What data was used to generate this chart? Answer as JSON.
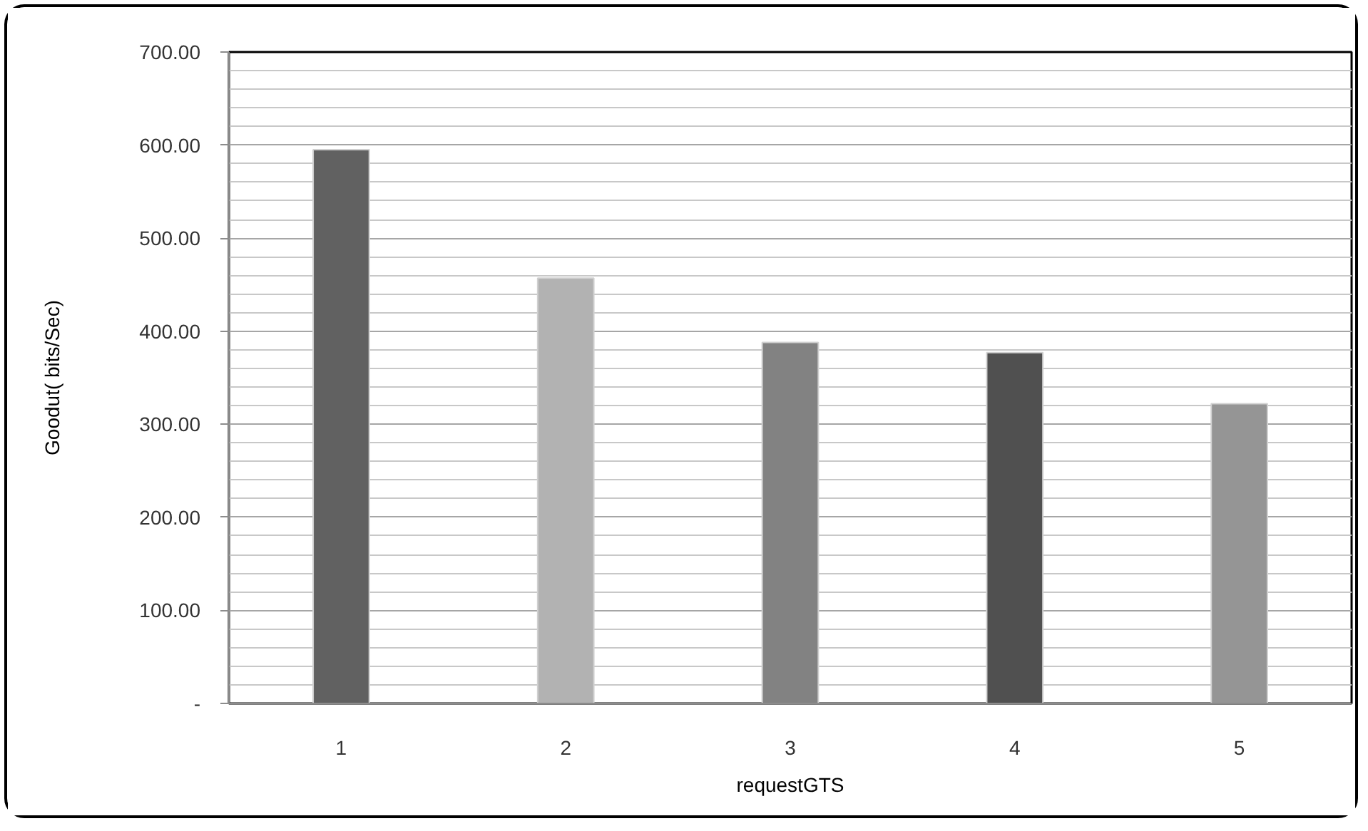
{
  "chart_data": {
    "type": "bar",
    "xlabel": "requestGTS",
    "ylabel": "Goodut( bits/Sec)",
    "categories": [
      "1",
      "2",
      "3",
      "4",
      "5"
    ],
    "values": [
      595,
      457,
      388,
      377,
      322
    ],
    "colors": [
      "#616161",
      "#b2b2b2",
      "#828282",
      "#505050",
      "#959595"
    ],
    "ylim": [
      0,
      700
    ],
    "yticks": [
      {
        "value": 0,
        "label": "-"
      },
      {
        "value": 100,
        "label": "100.00"
      },
      {
        "value": 200,
        "label": "200.00"
      },
      {
        "value": 300,
        "label": "300.00"
      },
      {
        "value": 400,
        "label": "400.00"
      },
      {
        "value": 500,
        "label": "500.00"
      },
      {
        "value": 600,
        "label": "600.00"
      },
      {
        "value": 700,
        "label": "700.00"
      }
    ],
    "grid": "y"
  }
}
